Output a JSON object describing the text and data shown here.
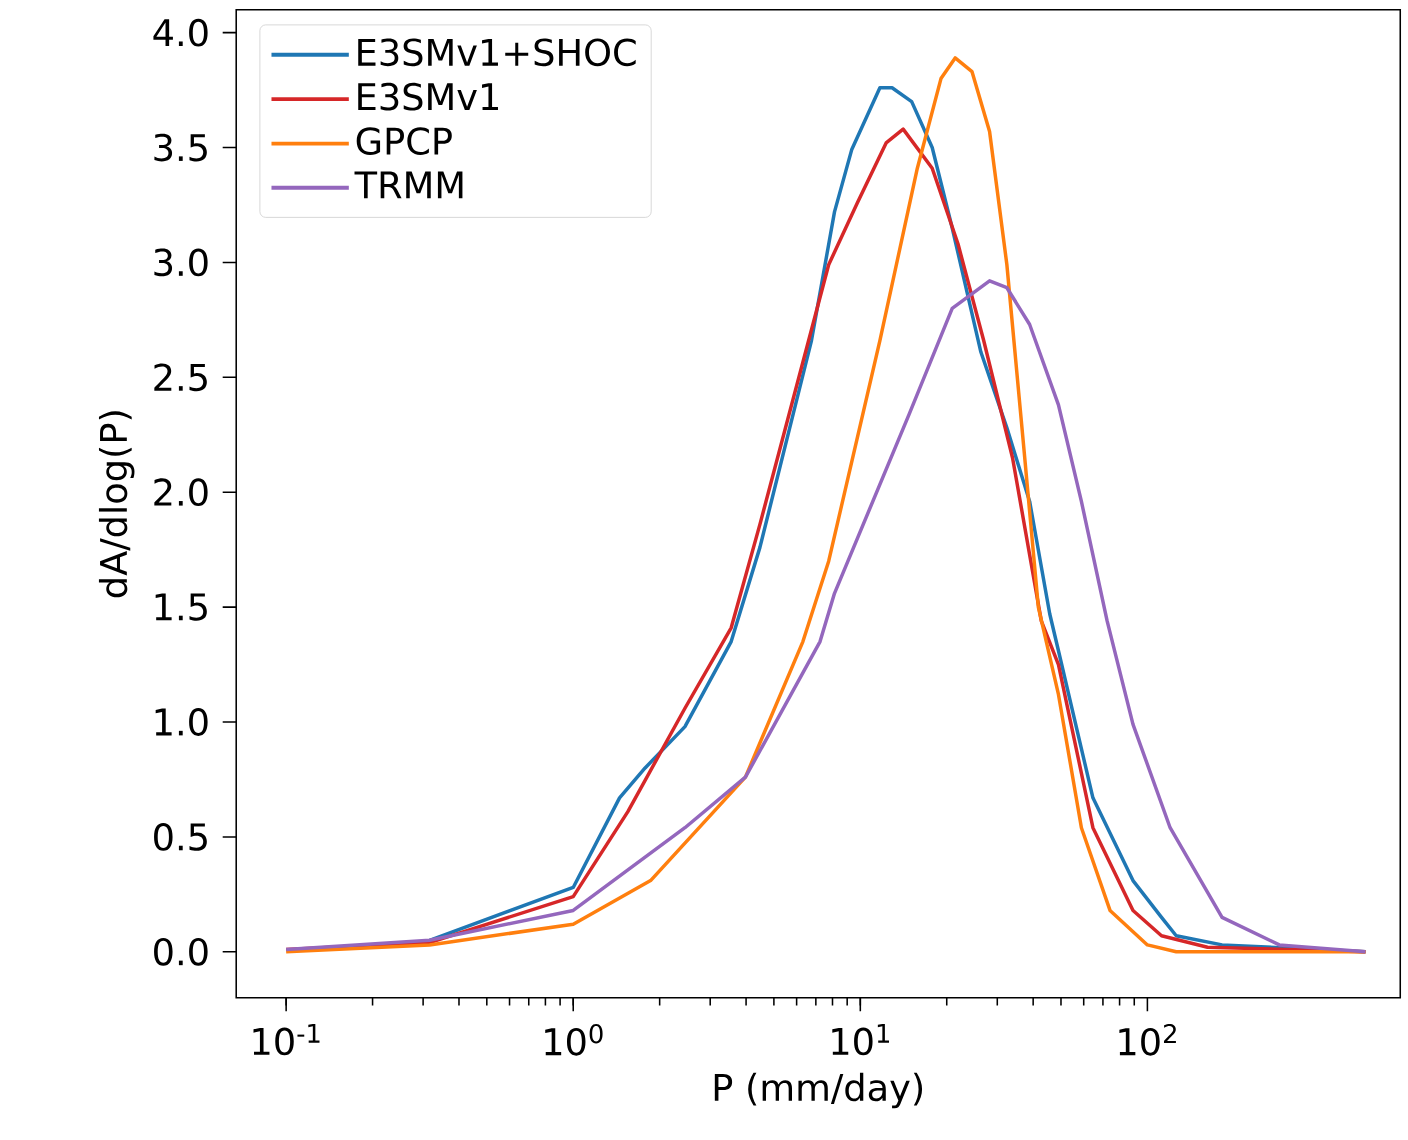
{
  "chart_data": {
    "type": "line",
    "xlabel": "P (mm/day)",
    "ylabel": "dA/dlog(P)",
    "log": "x",
    "legend": "top left",
    "xlim": [
      0.067,
      760
    ],
    "ylim": [
      -0.2,
      4.1
    ],
    "xticks": [
      {
        "value": 0.1,
        "label": "10$^{-1}$"
      },
      {
        "value": 1,
        "label": "10$^{0}$"
      },
      {
        "value": 10,
        "label": "10$^{1}$"
      },
      {
        "value": 100,
        "label": "10$^{2}$"
      }
    ],
    "yticks": [
      {
        "value": 0,
        "label": "0.0"
      },
      {
        "value": 0.5,
        "label": "0.5"
      },
      {
        "value": 1,
        "label": "1.0"
      },
      {
        "value": 1.5,
        "label": "1.5"
      },
      {
        "value": 2,
        "label": "2.0"
      },
      {
        "value": 2.5,
        "label": "2.5"
      },
      {
        "value": 3,
        "label": "3.0"
      },
      {
        "value": 3.5,
        "label": "3.5"
      },
      {
        "value": 4,
        "label": "4.0"
      }
    ],
    "series": [
      {
        "name": "E3SMv1+SHOC",
        "color": "#1f77b4",
        "x": [
          0.316,
          1,
          1.45,
          1.78,
          2.45,
          3.55,
          4.47,
          6.76,
          8.13,
          9.33,
          11.7,
          12.9,
          15.1,
          17.8,
          20.9,
          26.3,
          32.4,
          38.9,
          45.7,
          49,
          64.6,
          89.1,
          112,
          126,
          182,
          575
        ],
        "values": [
          0.05,
          0.28,
          0.67,
          0.8,
          0.98,
          1.35,
          1.76,
          2.66,
          3.22,
          3.49,
          3.76,
          3.76,
          3.7,
          3.5,
          3.15,
          2.61,
          2.28,
          1.96,
          1.47,
          1.31,
          0.67,
          0.31,
          0.15,
          0.07,
          0.03,
          0.0
        ]
      },
      {
        "name": "E3SMv1",
        "color": "#d62728",
        "x": [
          0.1,
          0.316,
          1,
          1.55,
          2.45,
          3.55,
          4.47,
          7.76,
          9.77,
          12.3,
          14.1,
          17.8,
          21.9,
          26.9,
          33.9,
          42.7,
          49,
          64.6,
          89.1,
          112,
          162,
          575
        ],
        "values": [
          0.01,
          0.04,
          0.24,
          0.61,
          1.06,
          1.41,
          1.86,
          2.99,
          3.26,
          3.52,
          3.58,
          3.41,
          3.08,
          2.66,
          2.15,
          1.44,
          1.25,
          0.54,
          0.18,
          0.07,
          0.02,
          0.0
        ]
      },
      {
        "name": "GPCP",
        "color": "#ff7f0e",
        "x": [
          0.1,
          0.316,
          1,
          1.86,
          3.98,
          6.31,
          7.76,
          11.7,
          15.8,
          19.1,
          21.4,
          24.5,
          28.2,
          32.4,
          37.2,
          41.7,
          49,
          58.9,
          74.1,
          100,
          126,
          575
        ],
        "values": [
          0.0,
          0.03,
          0.12,
          0.31,
          0.76,
          1.35,
          1.7,
          2.66,
          3.41,
          3.8,
          3.89,
          3.83,
          3.57,
          2.99,
          2.18,
          1.5,
          1.12,
          0.54,
          0.18,
          0.03,
          0.0,
          0.0
        ]
      },
      {
        "name": "TRMM",
        "color": "#9467bd",
        "x": [
          0.1,
          0.316,
          1,
          2.45,
          3.98,
          7.24,
          8.13,
          14.8,
          20.9,
          28.2,
          32.4,
          38.9,
          49,
          58.9,
          72.4,
          89.1,
          120,
          182,
          288,
          575
        ],
        "values": [
          0.01,
          0.05,
          0.18,
          0.54,
          0.76,
          1.35,
          1.56,
          2.34,
          2.8,
          2.92,
          2.89,
          2.73,
          2.38,
          1.96,
          1.44,
          0.99,
          0.54,
          0.15,
          0.03,
          0.0
        ]
      }
    ]
  }
}
